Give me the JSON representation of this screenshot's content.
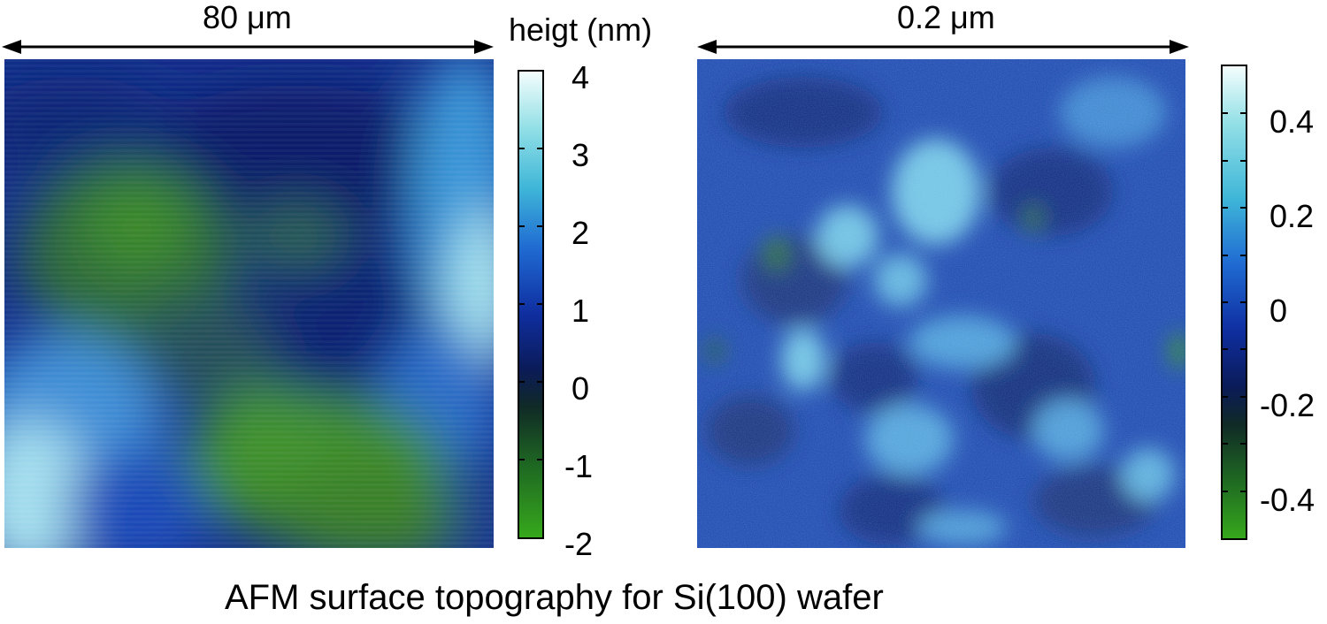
{
  "figure": {
    "title": "AFM surface topography for Si(100) wafer",
    "colorbar_label": "heigt (nm)"
  },
  "panels": [
    {
      "scale_label": "80 μm",
      "colorbar_ticks": [
        "4",
        "3",
        "2",
        "1",
        "0",
        "-1",
        "-2"
      ],
      "colorbar_range": [
        -2,
        4
      ]
    },
    {
      "scale_label": "0.2 μm",
      "colorbar_ticks": [
        "0.4",
        "0.2",
        "0",
        "-0.2",
        "-0.4"
      ],
      "colorbar_range": [
        -0.5,
        0.5
      ]
    }
  ],
  "colors": {
    "low": "#2e9f1e",
    "dark": "#0c1f64",
    "mid": "#1f55c8",
    "high": "#ecfbfb"
  }
}
